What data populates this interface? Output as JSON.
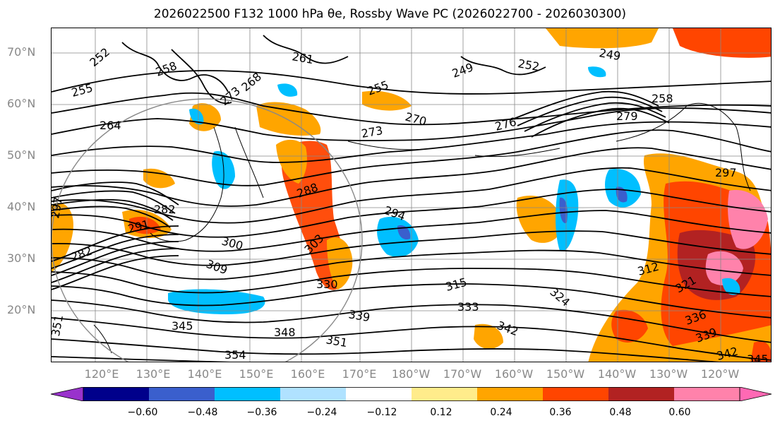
{
  "title": "2026022500 F132 1000 hPa θe, Rossby Wave PC (2026022700 - 2026030300)",
  "lat_labels": [
    "70°N",
    "60°N",
    "50°N",
    "40°N",
    "30°N",
    "20°N"
  ],
  "lon_labels": [
    "120°E",
    "130°E",
    "140°E",
    "150°E",
    "160°E",
    "170°E",
    "180°W",
    "170°W",
    "160°W",
    "150°W",
    "140°W",
    "130°W",
    "120°W"
  ],
  "colorbar": {
    "ticks": [
      "−0.60",
      "−0.48",
      "−0.36",
      "−0.24",
      "−0.12",
      "0.12",
      "0.24",
      "0.36",
      "0.48",
      "0.60"
    ],
    "colors": [
      "#9932cc",
      "#00008b",
      "#3a5fcd",
      "#00bfff",
      "#b0e2ff",
      "#ffffff",
      "#ffec8b",
      "#ffa500",
      "#ff4500",
      "#b22222",
      "#ff82ab",
      "#ff69b4"
    ]
  },
  "contour_labels": [
    "252",
    "258",
    "255",
    "264",
    "261",
    "268",
    "273",
    "270",
    "273",
    "249",
    "252",
    "255",
    "258",
    "249",
    "282",
    "288",
    "291",
    "297",
    "303",
    "300",
    "309",
    "294",
    "312",
    "315",
    "324",
    "321",
    "330",
    "333",
    "339",
    "345",
    "348",
    "351",
    "354",
    "342",
    "336",
    "339",
    "342",
    "345",
    "351",
    "276",
    "279",
    "297",
    "282"
  ],
  "colors": {
    "positive_strong": "#ff4500",
    "positive_mid": "#ffa500",
    "negative_mid": "#00bfff",
    "negative_strong": "#3a5fcd",
    "grid": "#888888"
  }
}
